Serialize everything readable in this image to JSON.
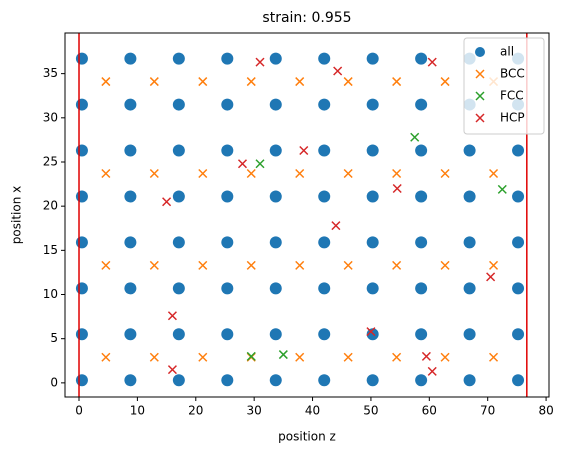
{
  "chart_data": {
    "type": "scatter",
    "title": "strain: 0.955",
    "x_label": "position z",
    "y_label": "position x",
    "xlim": [
      -2.4,
      80.5
    ],
    "xticks": [
      0,
      10,
      20,
      30,
      40,
      50,
      60,
      70,
      80
    ],
    "ylim": [
      -1.6,
      39.6
    ],
    "yticks": [
      0,
      5,
      10,
      15,
      20,
      25,
      30,
      35
    ],
    "legend": "upper right",
    "vlines": {
      "color": "#e00000",
      "values": [
        0,
        76.7
      ]
    },
    "series": [
      {
        "name": "all",
        "color": "#1f77b4",
        "marker": "o",
        "x": [
          0.5,
          8.8,
          17.1,
          25.4,
          33.7,
          42.0,
          50.3,
          58.6,
          66.9,
          75.2,
          0.5,
          8.8,
          17.1,
          25.4,
          33.7,
          42.0,
          50.3,
          58.6,
          66.9,
          75.2,
          0.5,
          8.8,
          17.1,
          25.4,
          33.7,
          42.0,
          50.3,
          58.6,
          66.9,
          75.2,
          0.5,
          8.8,
          17.1,
          25.4,
          33.7,
          42.0,
          50.3,
          58.6,
          66.9,
          75.2,
          0.5,
          8.8,
          17.1,
          25.4,
          33.7,
          42.0,
          50.3,
          58.6,
          66.9,
          75.2,
          0.5,
          8.8,
          17.1,
          25.4,
          33.7,
          42.0,
          50.3,
          58.6,
          66.9,
          75.2,
          0.5,
          8.8,
          17.1,
          25.4,
          33.7,
          42.0,
          50.3,
          58.6,
          66.9,
          75.2,
          0.5,
          8.8,
          17.1,
          25.4,
          33.7,
          42.0,
          50.3,
          58.6,
          66.9,
          75.2
        ],
        "values": [
          0.3,
          0.3,
          0.3,
          0.3,
          0.3,
          0.3,
          0.3,
          0.3,
          0.3,
          0.3,
          5.5,
          5.5,
          5.5,
          5.5,
          5.5,
          5.5,
          5.5,
          5.5,
          5.5,
          5.5,
          10.7,
          10.7,
          10.7,
          10.7,
          10.7,
          10.7,
          10.7,
          10.7,
          10.7,
          10.7,
          15.9,
          15.9,
          15.9,
          15.9,
          15.9,
          15.9,
          15.9,
          15.9,
          15.9,
          15.9,
          21.1,
          21.1,
          21.1,
          21.1,
          21.1,
          21.1,
          21.1,
          21.1,
          21.1,
          21.1,
          26.3,
          26.3,
          26.3,
          26.3,
          26.3,
          26.3,
          26.3,
          26.3,
          26.3,
          26.3,
          31.5,
          31.5,
          31.5,
          31.5,
          31.5,
          31.5,
          31.5,
          31.5,
          31.5,
          31.5,
          36.7,
          36.7,
          36.7,
          36.7,
          36.7,
          36.7,
          36.7,
          36.7,
          36.7,
          36.7
        ]
      },
      {
        "name": "BCC",
        "color": "#ff7f0e",
        "marker": "x",
        "x": [
          4.6,
          12.9,
          21.2,
          29.5,
          37.8,
          46.1,
          54.4,
          62.7,
          71.0,
          4.6,
          12.9,
          21.2,
          29.5,
          37.8,
          46.1,
          54.4,
          62.7,
          71.0,
          4.6,
          12.9,
          21.2,
          29.5,
          37.8,
          46.1,
          54.4,
          62.7,
          71.0,
          4.6,
          12.9,
          21.2,
          29.5,
          37.8,
          46.1,
          54.4,
          62.7,
          71.0
        ],
        "values": [
          2.9,
          2.9,
          2.9,
          2.9,
          2.9,
          2.9,
          2.9,
          2.9,
          2.9,
          13.3,
          13.3,
          13.3,
          13.3,
          13.3,
          13.3,
          13.3,
          13.3,
          13.3,
          23.7,
          23.7,
          23.7,
          23.7,
          23.7,
          23.7,
          23.7,
          23.7,
          23.7,
          34.1,
          34.1,
          34.1,
          34.1,
          34.1,
          34.1,
          34.1,
          34.1,
          34.1
        ]
      },
      {
        "name": "FCC",
        "color": "#2ca02c",
        "marker": "x",
        "x": [
          35,
          31,
          57.5,
          72.5,
          29.5
        ],
        "values": [
          3.2,
          24.8,
          27.8,
          21.9,
          3.0
        ]
      },
      {
        "name": "HCP",
        "color": "#d62728",
        "marker": "x",
        "x": [
          31,
          44.3,
          60.5,
          38.5,
          28,
          54.5,
          44,
          15,
          70.5,
          16,
          50,
          59.5,
          60.5,
          16
        ],
        "values": [
          36.3,
          35.3,
          36.3,
          26.3,
          24.8,
          22.0,
          17.8,
          20.5,
          12.0,
          7.6,
          5.8,
          3.0,
          1.3,
          1.5
        ]
      }
    ]
  }
}
